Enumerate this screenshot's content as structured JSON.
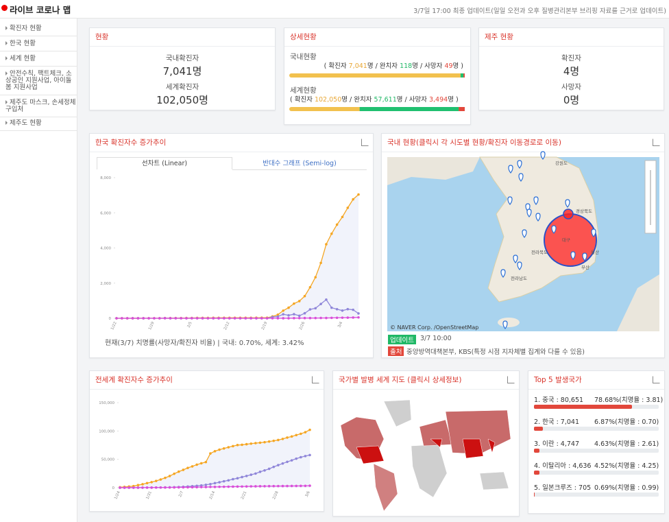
{
  "header": {
    "title": "라이브 코로나 맵",
    "update": "3/7일 17:00 최종 업데이트(일일 오전과 오후 질병관리본부 브리핑 자료를 근거로 업데이트)"
  },
  "sidebar": [
    "확진자 현황",
    "한국 현황",
    "세계 현황",
    "안전수칙, 팩트체크, 소상공인 지원사업, 아이돌봄 지원사업",
    "제주도 마스크, 손세정체 구입처",
    "제주도 현황"
  ],
  "status": {
    "title": "현황",
    "items": [
      {
        "label": "국내확진자",
        "value": "7,041명"
      },
      {
        "label": "세계확진자",
        "value": "102,050명"
      }
    ]
  },
  "detail": {
    "title": "상세현황",
    "rows": [
      {
        "label": "국내현황",
        "segments": [
          "( 확진자 ",
          "7,041",
          "명 / 완치자 ",
          "118",
          "명 / 사망자 ",
          "49",
          "명 )"
        ],
        "bar": {
          "confirmed": 7041,
          "recovered": 118,
          "deaths": 49
        }
      },
      {
        "label": "세계현황",
        "segments": [
          "( 확진자 ",
          "102,050",
          "명 / 완치자 ",
          "57,611",
          "명 / 사망자 ",
          "3,494",
          "명 )"
        ],
        "bar": {
          "confirmed": 102050,
          "recovered": 57611,
          "deaths": 3494
        }
      }
    ]
  },
  "jeju": {
    "title": "제주 현황",
    "items": [
      {
        "label": "확진자",
        "value": "4명"
      },
      {
        "label": "사망자",
        "value": "0명"
      }
    ]
  },
  "korea_chart": {
    "type": "line",
    "title": "한국 확진자수 증가추이",
    "tabs": [
      "선차트 (Linear)",
      "반대수 그래프 (Semi-log)"
    ],
    "footnote": "현재(3/7) 치명률(사망자/확진자 비율) | 국내: 0.70%, 세계: 3.42%",
    "categories": [
      "1/22",
      null,
      null,
      null,
      null,
      null,
      null,
      "1/29",
      null,
      null,
      null,
      null,
      null,
      null,
      "2/5",
      null,
      null,
      null,
      null,
      null,
      null,
      "2/12",
      null,
      null,
      null,
      null,
      null,
      null,
      "2/19",
      null,
      null,
      null,
      null,
      null,
      null,
      "2/26",
      null,
      null,
      null,
      null,
      null,
      null,
      "3/4",
      null,
      null,
      null
    ],
    "ylim": [
      0,
      8000
    ],
    "yticks": [
      0,
      {
        "value": 2000,
        "label": "2,000"
      },
      {
        "value": 4000,
        "label": "4,000"
      },
      {
        "value": 6000,
        "label": "6,000"
      },
      {
        "value": 8000,
        "label": "8,000"
      }
    ],
    "series": [
      {
        "color": "#f5a623",
        "values": [
          1,
          1,
          1,
          2,
          3,
          4,
          4,
          4,
          4,
          11,
          12,
          15,
          15,
          16,
          19,
          23,
          24,
          24,
          25,
          27,
          28,
          28,
          28,
          28,
          28,
          29,
          30,
          31,
          31,
          104,
          204,
          433,
          602,
          833,
          977,
          1261,
          1766,
          2337,
          3150,
          4212,
          4812,
          5328,
          5766,
          6284,
          6767,
          7041
        ]
      },
      {
        "color": "#8f86d9",
        "values": [
          0,
          0,
          0,
          1,
          1,
          1,
          0,
          0,
          0,
          7,
          1,
          3,
          0,
          1,
          3,
          4,
          1,
          0,
          1,
          2,
          1,
          0,
          0,
          0,
          0,
          1,
          1,
          1,
          0,
          73,
          100,
          229,
          169,
          231,
          144,
          284,
          505,
          571,
          813,
          1062,
          600,
          516,
          438,
          518,
          483,
          274
        ]
      },
      {
        "color": "#d94fd9",
        "values": [
          0,
          0,
          0,
          0,
          0,
          0,
          0,
          0,
          0,
          0,
          0,
          0,
          0,
          0,
          0,
          0,
          0,
          0,
          0,
          0,
          0,
          0,
          0,
          0,
          0,
          0,
          0,
          0,
          0,
          0,
          1,
          2,
          2,
          7,
          8,
          11,
          12,
          13,
          16,
          17,
          22,
          28,
          32,
          35,
          42,
          49
        ]
      }
    ]
  },
  "korea_map": {
    "title": "국내 현황(클릭시 각 시도별 현황/확진자 이동경로로 이동)",
    "labels": [
      "강원도",
      "경상북도",
      "전라북도",
      "전라남도",
      "대구",
      "울산",
      "부산"
    ],
    "copyright": "© NAVER Corp. /OpenStreetMap",
    "update_tag": "업데이트",
    "update_time": "3/7 10:00",
    "source_tag": "출처",
    "source": "중앙방역대책본부, KBS(특정 시점 지자체별 집계와 다를 수 있음)"
  },
  "world_chart": {
    "type": "line",
    "title": "전세계 확진자수 증가추이",
    "categories": [
      "1/24",
      null,
      null,
      null,
      null,
      null,
      null,
      "1/31",
      null,
      null,
      null,
      null,
      null,
      null,
      "2/7",
      null,
      null,
      null,
      null,
      null,
      null,
      "2/14",
      null,
      null,
      null,
      null,
      null,
      null,
      "2/21",
      null,
      null,
      null,
      null,
      null,
      null,
      "2/28",
      null,
      null,
      null,
      null,
      null,
      null,
      "3/6"
    ],
    "ylim": [
      0,
      150000
    ],
    "yticks": [
      0,
      {
        "value": 50000,
        "label": "50,000"
      },
      {
        "value": 100000,
        "label": "100,000"
      },
      {
        "value": 150000,
        "label": "150,000"
      }
    ],
    "series": [
      {
        "color": "#f5a623",
        "values": [
          900,
          1400,
          2100,
          2800,
          4600,
          6100,
          8100,
          9800,
          11900,
          14500,
          17400,
          20600,
          24600,
          28300,
          31500,
          34900,
          37600,
          40600,
          43100,
          45200,
          60400,
          64400,
          67100,
          69200,
          71300,
          73300,
          75200,
          75700,
          76700,
          77700,
          78600,
          79400,
          80300,
          81400,
          82700,
          84100,
          86000,
          88400,
          90300,
          92800,
          95100,
          97900,
          102050
        ]
      },
      {
        "color": "#8f86d9",
        "values": [
          36,
          39,
          49,
          51,
          60,
          103,
          124,
          171,
          243,
          328,
          475,
          632,
          892,
          1153,
          1540,
          2050,
          2650,
          3250,
          3950,
          5150,
          6300,
          8050,
          9600,
          11300,
          13000,
          15000,
          16700,
          18800,
          20700,
          22900,
          24900,
          28000,
          30500,
          33300,
          36700,
          39800,
          42700,
          45600,
          48200,
          51200,
          53700,
          55800,
          57611
        ]
      },
      {
        "color": "#d94fd9",
        "values": [
          26,
          42,
          56,
          82,
          106,
          132,
          170,
          213,
          259,
          304,
          362,
          426,
          492,
          565,
          638,
          724,
          813,
          910,
          1018,
          1115,
          1368,
          1383,
          1526,
          1669,
          1775,
          1873,
          2009,
          2126,
          2247,
          2360,
          2460,
          2618,
          2699,
          2763,
          2800,
          2858,
          2923,
          2977,
          3050,
          3117,
          3202,
          3285,
          3494
        ]
      }
    ]
  },
  "world_map": {
    "title": "국가별 발병 세계 지도 (클릭시 상세정보)"
  },
  "top5": {
    "title": "Top 5 발생국가",
    "items": [
      {
        "label": "1. 중국 : 80,651",
        "share": 78.68,
        "share_label": "78.68%(치명율 : 3.81)"
      },
      {
        "label": "2. 한국 : 7,041",
        "share": 6.87,
        "share_label": "6.87%(치명율 : 0.70)"
      },
      {
        "label": "3. 이란 : 4,747",
        "share": 4.63,
        "share_label": "4.63%(치명율 : 2.61)"
      },
      {
        "label": "4. 이탈리아 : 4,636",
        "share": 4.52,
        "share_label": "4.52%(치명율 : 4.25)"
      },
      {
        "label": "5. 일본크루즈 : 705",
        "share": 0.69,
        "share_label": "0.69%(치명율 : 0.99)"
      }
    ]
  }
}
